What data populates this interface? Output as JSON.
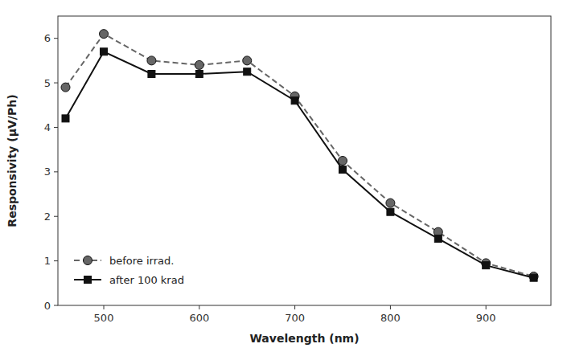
{
  "chart_data": {
    "type": "line",
    "xlabel": "Wavelength (nm)",
    "ylabel": "Responsivity (μV/Ph)",
    "x": [
      460,
      500,
      550,
      600,
      650,
      700,
      750,
      800,
      850,
      900,
      950
    ],
    "series": [
      {
        "name": "before irrad.",
        "color": "#666666",
        "marker": "circle",
        "line_style": "dashed",
        "values": [
          4.9,
          6.1,
          5.5,
          5.4,
          5.5,
          4.7,
          3.25,
          2.3,
          1.65,
          0.95,
          0.65
        ]
      },
      {
        "name": "after 100 krad",
        "color": "#111111",
        "marker": "square",
        "line_style": "solid",
        "values": [
          4.2,
          5.7,
          5.2,
          5.2,
          5.25,
          4.6,
          3.05,
          2.1,
          1.5,
          0.9,
          0.62
        ]
      }
    ],
    "xlim": [
      452,
      968
    ],
    "ylim": [
      0,
      6.5
    ],
    "xticks": [
      500,
      600,
      700,
      800,
      900
    ],
    "yticks": [
      0,
      1,
      2,
      3,
      4,
      5,
      6
    ],
    "grid": false,
    "legend": "lower left"
  }
}
